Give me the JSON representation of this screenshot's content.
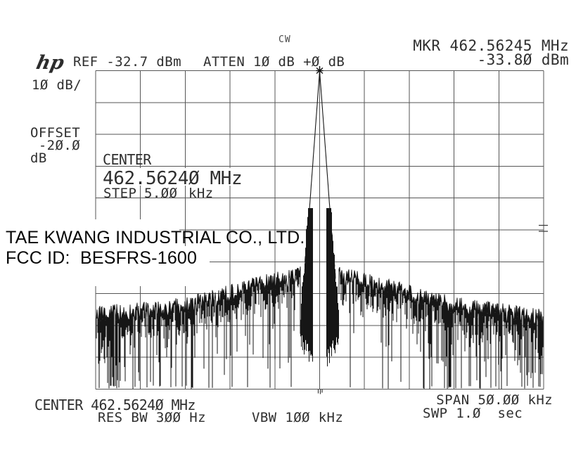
{
  "header": {
    "cw_label": "CW",
    "marker_readout": {
      "line1": "MKR 462.56245 MHz",
      "line2": "-33.8Ø dBm"
    },
    "logo": "hp",
    "ref_label": "REF -32.7 dBm",
    "atten_label": "ATTEN 1Ø dB +Ø dB"
  },
  "left_labels": {
    "scale": "1Ø dB/",
    "offset_line1": "OFFSET",
    "offset_line2": " -2Ø.Ø",
    "offset_line3": "dB"
  },
  "graticule_annotations": {
    "center_word": "CENTER",
    "center_value": "462.5624Ø MHz",
    "step_word": "STEP",
    "step_value": "5.ØØ",
    "step_unit": "kHz"
  },
  "overlay": {
    "company": "TAE KWANG INDUSTRIAL CO., LTD.",
    "fcc_id": "FCC ID:  BESFRS-1600"
  },
  "footer": {
    "center": "CENTER 462.5624Ø MHz",
    "res_bw": "RES BW 3ØØ Hz",
    "vbw": "VBW 1ØØ kHz",
    "span": "SPAN 5Ø.ØØ kHz",
    "sweep": "SWP 1.Ø  sec"
  },
  "colors": {
    "background": "#ffffff",
    "grid": "#4e4e4e",
    "trace": "#161616",
    "instrument_text": "#2f2f2f",
    "overlay_text": "#060606"
  },
  "chart_data": {
    "type": "line",
    "title": "CW carrier spectrum, HP spectrum analyzer screen plot",
    "x_axis": {
      "center_mhz": 462.5624,
      "span_khz": 50.0,
      "step_khz": 5.0,
      "divisions": 10,
      "khz_per_div": 5.0
    },
    "y_axis": {
      "ref_level_dbm": -32.7,
      "scale_db_per_div": 10,
      "offset_db": -20.0,
      "divisions": 10
    },
    "marker": {
      "mode": "CW",
      "frequency_mhz": 462.56245,
      "amplitude_dbm": -33.8
    },
    "settings": {
      "attenuation_db": 10,
      "atten_offset_db": 0,
      "res_bw": "300 Hz",
      "video_bw": "100 kHz",
      "sweep_time_sec": 1.0
    },
    "trace_features": {
      "peak": {
        "frequency_mhz": 462.5624,
        "amplitude_dbm": -33.8,
        "x_div": 5.0,
        "db_below_ref": 1.1
      },
      "skirt": {
        "full_width_div_at_8div_down": 0.8,
        "dense_sideband_noise": true
      },
      "noise_floor": {
        "tops_db_below_ref_near_center": 65,
        "tops_db_below_ref_at_edges": 77,
        "spikes_reach_db_below_ref": 100
      },
      "shape": "narrow CW carrier peak at center with dense noise-sideband skirt and full-span noise grass"
    },
    "seed": 20
  }
}
